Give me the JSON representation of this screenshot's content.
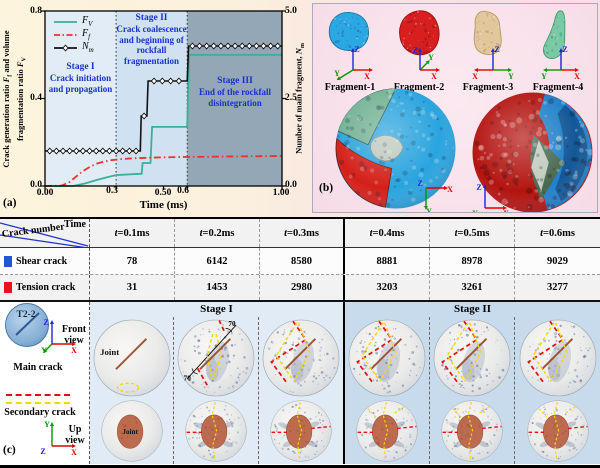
{
  "panel_a": {
    "label": "(a)",
    "ylabel_left": [
      {
        "t": "Crack generation ratio "
      },
      {
        "t": "F",
        "i": true
      },
      {
        "t": "f",
        "sub": true
      },
      {
        "t": " and volume fragmentation ratio "
      },
      {
        "t": "F",
        "i": true
      },
      {
        "t": "V",
        "sub": true
      }
    ],
    "ylabel_right": [
      {
        "t": "Number of main fragment, "
      },
      {
        "t": "N",
        "i": true
      },
      {
        "t": "m",
        "sub": true
      }
    ],
    "xlabel": "Time (ms)",
    "x_ticks": [
      "0.00",
      "0.50",
      "1.00"
    ],
    "x_stage_ticks": [
      "0.3",
      "0.6"
    ],
    "y_ticks_left": [
      "0.8",
      "0.4",
      "0.0"
    ],
    "y_ticks_right": [
      "5.0",
      "2.5",
      "0.0"
    ],
    "legend": [
      {
        "base": "F",
        "sub": "V"
      },
      {
        "base": "F",
        "sub": "f"
      },
      {
        "base": "N",
        "sub": "m"
      }
    ],
    "stages": [
      {
        "title": "Stage I",
        "desc": "Crack initiation and propagation"
      },
      {
        "title": "Stage II",
        "desc": "Crack coalescence and beginning of rockfall fragmentation"
      },
      {
        "title": "Stage III",
        "desc": "End of the rockfall disintegration"
      }
    ]
  },
  "chart_data": {
    "type": "line",
    "xlabel": "Time (ms)",
    "ylabel_left": "Crack generation ratio F_f and volume fragmentation ratio F_V",
    "ylabel_right": "Number of main fragment, N_m",
    "xlim": [
      0,
      1.0
    ],
    "ylim_left": [
      0,
      0.8
    ],
    "ylim_right": [
      0,
      5.0
    ],
    "x_major": [
      0,
      0.5,
      1.0
    ],
    "y_major_left": [
      0,
      0.4,
      0.8
    ],
    "y_major_right": [
      0,
      2.5,
      5.0
    ],
    "stage_boundaries": [
      0.3,
      0.6
    ],
    "stage_colors": [
      "#e1ecf6",
      "#d0e2f1",
      "#93a7b7"
    ],
    "grid": false,
    "legend_position": "top-left",
    "series": [
      {
        "name": "F_V",
        "axis": "left",
        "color": "#3fae96",
        "style": "solid",
        "points": [
          [
            0,
            0
          ],
          [
            0.12,
            0
          ],
          [
            0.17,
            0.012
          ],
          [
            0.22,
            0.028
          ],
          [
            0.27,
            0.042
          ],
          [
            0.3,
            0.05
          ],
          [
            0.4,
            0.056
          ],
          [
            0.408,
            0.056
          ],
          [
            0.412,
            0.105
          ],
          [
            0.445,
            0.105
          ],
          [
            0.452,
            0.27
          ],
          [
            0.6,
            0.27
          ],
          [
            0.608,
            0.6
          ],
          [
            1.0,
            0.6
          ]
        ]
      },
      {
        "name": "F_f",
        "axis": "left",
        "color": "#e6352b",
        "style": "dashdot",
        "points": [
          [
            0,
            0
          ],
          [
            0.07,
            0.002
          ],
          [
            0.1,
            0.015
          ],
          [
            0.13,
            0.042
          ],
          [
            0.16,
            0.068
          ],
          [
            0.19,
            0.088
          ],
          [
            0.22,
            0.103
          ],
          [
            0.25,
            0.112
          ],
          [
            0.28,
            0.118
          ],
          [
            0.32,
            0.123
          ],
          [
            0.38,
            0.127
          ],
          [
            0.45,
            0.13
          ],
          [
            0.55,
            0.132
          ],
          [
            0.7,
            0.134
          ],
          [
            0.85,
            0.136
          ],
          [
            1.0,
            0.137
          ]
        ]
      },
      {
        "name": "N_m",
        "axis": "right",
        "color": "#111111",
        "style": "solid-marker",
        "points": [
          [
            0,
            1
          ],
          [
            0.402,
            1
          ],
          [
            0.406,
            2
          ],
          [
            0.43,
            2
          ],
          [
            0.435,
            3
          ],
          [
            0.6,
            3
          ],
          [
            0.606,
            4
          ],
          [
            1.0,
            4
          ]
        ],
        "markers": [
          [
            0.02,
            1
          ],
          [
            0.048,
            1
          ],
          [
            0.076,
            1
          ],
          [
            0.104,
            1
          ],
          [
            0.132,
            1
          ],
          [
            0.16,
            1
          ],
          [
            0.188,
            1
          ],
          [
            0.216,
            1
          ],
          [
            0.244,
            1
          ],
          [
            0.272,
            1
          ],
          [
            0.3,
            1
          ],
          [
            0.328,
            1
          ],
          [
            0.356,
            1
          ],
          [
            0.384,
            1
          ],
          [
            0.418,
            2
          ],
          [
            0.46,
            3
          ],
          [
            0.495,
            3
          ],
          [
            0.53,
            3
          ],
          [
            0.565,
            3
          ],
          [
            0.622,
            4
          ],
          [
            0.652,
            4
          ],
          [
            0.682,
            4
          ],
          [
            0.712,
            4
          ],
          [
            0.742,
            4
          ],
          [
            0.772,
            4
          ],
          [
            0.802,
            4
          ],
          [
            0.832,
            4
          ],
          [
            0.862,
            4
          ],
          [
            0.892,
            4
          ],
          [
            0.922,
            4
          ],
          [
            0.952,
            4
          ],
          [
            0.982,
            4
          ]
        ]
      }
    ]
  },
  "axes_labels": {
    "x": "X",
    "y": "Y",
    "z": "Z"
  },
  "panel_b": {
    "label": "(b)",
    "fragments": [
      {
        "name": "Fragment-1",
        "color": "#2ba7e2",
        "shade": "#176f9e"
      },
      {
        "name": "Fragment-2",
        "color": "#d71f1f",
        "shade": "#8e0e0e"
      },
      {
        "name": "Fragment-3",
        "color": "#e2c69c",
        "shade": "#b39364"
      },
      {
        "name": "Fragment-4",
        "color": "#7ac8a4",
        "shade": "#47946f"
      }
    ],
    "sphere_left": {
      "blue": "#2aa4de",
      "green": "#71b193",
      "red": "#d32019",
      "gray": "#bcc8bd"
    },
    "sphere_right": {
      "red": "#b31410",
      "blue": "#2080c8",
      "blue_dark": "#11508e",
      "green": "#47684f",
      "gray": "#ccd6c8"
    }
  },
  "panel_c": {
    "label": "(c)",
    "corner": {
      "top": "Time",
      "bottom": "Crack number"
    },
    "time_columns": [
      [
        {
          "t": "t",
          "i": true
        },
        {
          "t": "=0.1ms"
        }
      ],
      [
        {
          "t": "t",
          "i": true
        },
        {
          "t": "=0.2ms"
        }
      ],
      [
        {
          "t": "t",
          "i": true
        },
        {
          "t": "=0.3ms"
        }
      ],
      [
        {
          "t": "t",
          "i": true
        },
        {
          "t": "=0.4ms"
        }
      ],
      [
        {
          "t": "t",
          "i": true
        },
        {
          "t": "=0.5ms"
        }
      ],
      [
        {
          "t": "t",
          "i": true
        },
        {
          "t": "=0.6ms"
        }
      ]
    ],
    "rows": [
      {
        "label": "Shear crack",
        "color": "#2255d0",
        "values": [
          "78",
          "6142",
          "8580",
          "8881",
          "8978",
          "9029"
        ]
      },
      {
        "label": "Tension crack",
        "color": "#e8141c",
        "values": [
          "31",
          "1453",
          "2980",
          "3203",
          "3261",
          "3277"
        ]
      }
    ],
    "stage_bars": [
      "Stage I",
      "Stage II"
    ],
    "legend": {
      "model": "T2-2",
      "front_view": "Front view",
      "up_view": "Up view",
      "main_crack": "Main crack",
      "secondary_crack": "Secondary crack"
    },
    "joint_label": "Joint",
    "angle_label": "70",
    "image_columns": [
      {
        "front": "front-joint",
        "up": "up-joint"
      },
      {
        "front": "front-s1a",
        "up": "up-s1a"
      },
      {
        "front": "front-s1b",
        "up": "up-s1b"
      },
      {
        "front": "front-s2",
        "up": "up-s2"
      },
      {
        "front": "front-s2",
        "up": "up-s2"
      },
      {
        "front": "front-s2",
        "up": "up-s2"
      }
    ]
  }
}
